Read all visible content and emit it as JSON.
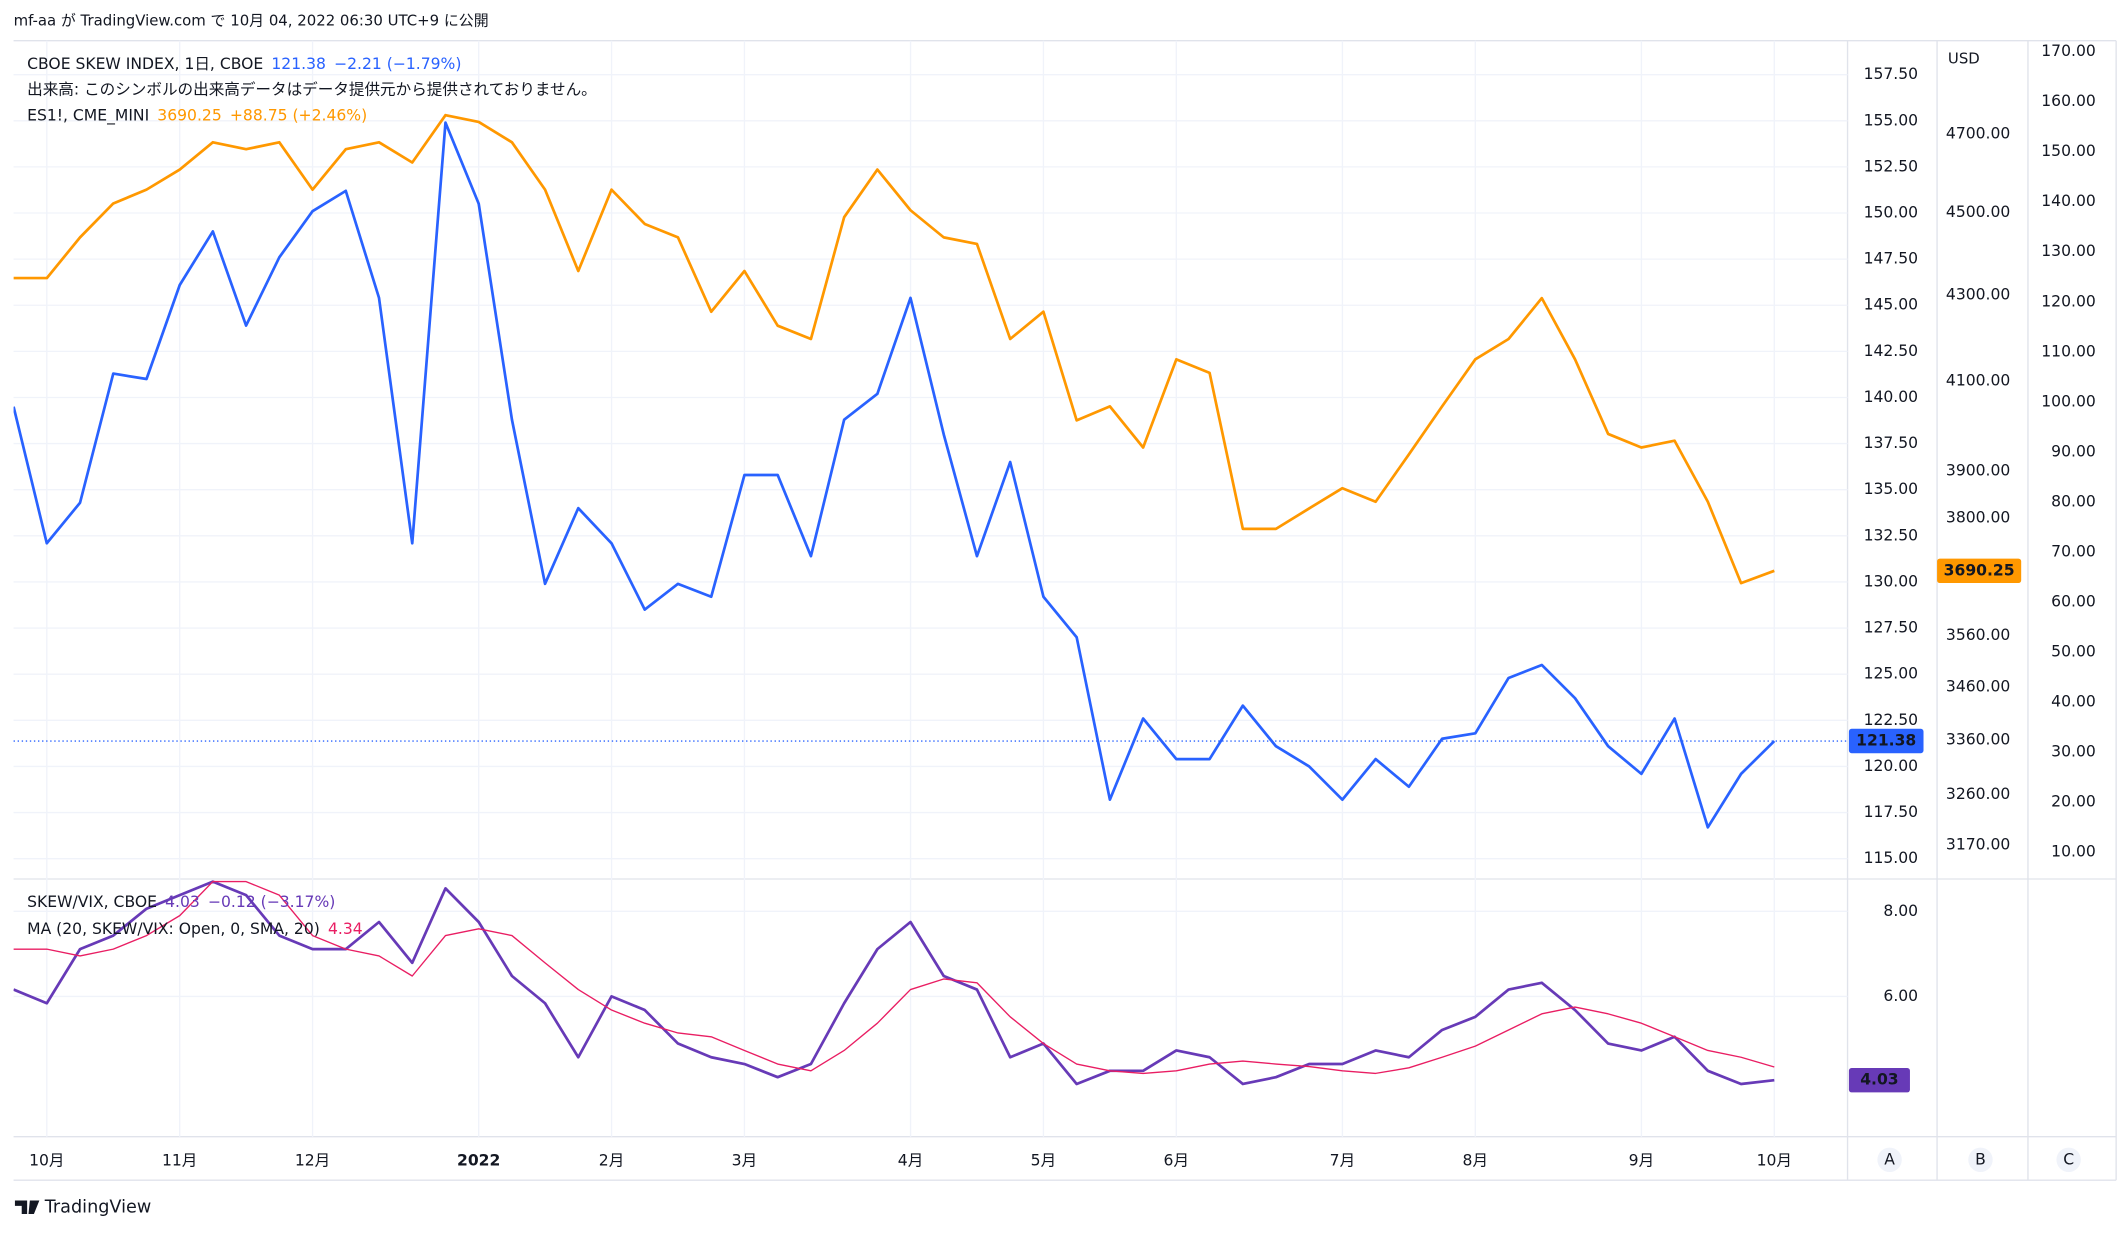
{
  "page": {
    "published": "mf-aa が TradingView.com で 10月 04, 2022 06:30 UTC+9 に公開",
    "brand": "TradingView",
    "scale_buttons": [
      "A",
      "B",
      "C"
    ]
  },
  "chart_data": [
    {
      "type": "line",
      "categories": [
        null,
        "10月",
        null,
        null,
        null,
        "11月",
        null,
        null,
        null,
        "12月",
        null,
        null,
        null,
        null,
        "2022",
        null,
        null,
        null,
        "2月",
        null,
        null,
        null,
        "3月",
        null,
        null,
        null,
        null,
        "4月",
        null,
        null,
        null,
        "5月",
        null,
        null,
        null,
        "6月",
        null,
        null,
        null,
        null,
        "7月",
        null,
        null,
        null,
        "8月",
        null,
        null,
        null,
        null,
        "9月",
        null,
        null,
        null,
        "10月"
      ],
      "note": "出来高: このシンボルの出来高データはデータ提供元から提供されておりません。",
      "series": [
        {
          "name": "CBOE SKEW INDEX, 1日, CBOE",
          "color": "#2962ff",
          "axis": "y",
          "change": "−2.21 (−1.79%)",
          "values": [
            139.5,
            132.1,
            134.3,
            141.3,
            141.0,
            146.1,
            149.0,
            143.9,
            147.6,
            150.1,
            151.2,
            145.4,
            132.1,
            154.9,
            150.5,
            138.8,
            129.9,
            134.0,
            132.1,
            128.5,
            129.9,
            129.2,
            135.8,
            135.8,
            131.4,
            138.8,
            140.2,
            145.4,
            138.0,
            131.4,
            136.5,
            129.2,
            127.0,
            118.2,
            122.6,
            120.4,
            120.4,
            123.3,
            121.1,
            120.0,
            118.2,
            120.4,
            118.9,
            121.5,
            121.8,
            124.8,
            125.5,
            123.7,
            121.1,
            119.6,
            122.6,
            116.7,
            119.6,
            121.38
          ]
        },
        {
          "name": "ES1!, CME_MINI",
          "color": "#ff9800",
          "axis": "y2",
          "change": "+88.75 (+2.46%)",
          "values": [
            4340,
            4340,
            4439,
            4523,
            4558,
            4609,
            4679,
            4661,
            4679,
            4558,
            4661,
            4679,
            4627,
            4750,
            4732,
            4679,
            4558,
            4357,
            4558,
            4472,
            4439,
            4260,
            4357,
            4227,
            4196,
            4489,
            4609,
            4506,
            4439,
            4423,
            4196,
            4260,
            4011,
            4042,
            3951,
            4149,
            4118,
            3777,
            3777,
            3820,
            3863,
            3834,
            3936,
            4042,
            4149,
            4196,
            4292,
            4149,
            3981,
            3951,
            3966,
            3834,
            3665,
            3690.25
          ]
        }
      ],
      "ylim": [
        113.9,
        159.34
      ],
      "yticks": [
        {
          "value": 115,
          "label": "115.00"
        },
        {
          "value": 117.5,
          "label": "117.50"
        },
        {
          "value": 120,
          "label": "120.00"
        },
        {
          "value": 122.5,
          "label": "122.50"
        },
        {
          "value": 125,
          "label": "125.00"
        },
        {
          "value": 127.5,
          "label": "127.50"
        },
        {
          "value": 130,
          "label": "130.00"
        },
        {
          "value": 132.5,
          "label": "132.50"
        },
        {
          "value": 135,
          "label": "135.00"
        },
        {
          "value": 137.5,
          "label": "137.50"
        },
        {
          "value": 140,
          "label": "140.00"
        },
        {
          "value": 142.5,
          "label": "142.50"
        },
        {
          "value": 145,
          "label": "145.00"
        },
        {
          "value": 147.5,
          "label": "147.50"
        },
        {
          "value": 150,
          "label": "150.00"
        },
        {
          "value": 152.5,
          "label": "152.50"
        },
        {
          "value": 155,
          "label": "155.00"
        },
        {
          "value": 157.5,
          "label": "157.50"
        }
      ],
      "y2_unit": "USD",
      "y2_log": true,
      "y2lim": [
        3111,
        4950
      ],
      "y2ticks": [
        {
          "value": 3170,
          "label": "3170.00"
        },
        {
          "value": 3260,
          "label": "3260.00"
        },
        {
          "value": 3360,
          "label": "3360.00"
        },
        {
          "value": 3460,
          "label": "3460.00"
        },
        {
          "value": 3560,
          "label": "3560.00"
        },
        {
          "value": 3800,
          "label": "3800.00"
        },
        {
          "value": 3900,
          "label": "3900.00"
        },
        {
          "value": 4100,
          "label": "4100.00"
        },
        {
          "value": 4300,
          "label": "4300.00"
        },
        {
          "value": 4500,
          "label": "4500.00"
        },
        {
          "value": 4700,
          "label": "4700.00"
        }
      ],
      "y3lim": [
        4.58,
        172.2
      ],
      "y3ticks": [
        {
          "value": 10,
          "label": "10.00"
        },
        {
          "value": 20,
          "label": "20.00"
        },
        {
          "value": 30,
          "label": "30.00"
        },
        {
          "value": 40,
          "label": "40.00"
        },
        {
          "value": 50,
          "label": "50.00"
        },
        {
          "value": 60,
          "label": "60.00"
        },
        {
          "value": 70,
          "label": "70.00"
        },
        {
          "value": 80,
          "label": "80.00"
        },
        {
          "value": 90,
          "label": "90.00"
        },
        {
          "value": 100,
          "label": "100.00"
        },
        {
          "value": 110,
          "label": "110.00"
        },
        {
          "value": 120,
          "label": "120.00"
        },
        {
          "value": 130,
          "label": "130.00"
        },
        {
          "value": 140,
          "label": "140.00"
        },
        {
          "value": 150,
          "label": "150.00"
        },
        {
          "value": 160,
          "label": "160.00"
        },
        {
          "value": 170,
          "label": "170.00"
        }
      ],
      "grid": true
    },
    {
      "type": "line",
      "series": [
        {
          "name": "SKEW/VIX, CBOE",
          "color": "#673ab7",
          "change": "−0.12 (−3.17%)",
          "values": [
            6.16,
            5.84,
            7.11,
            7.43,
            8.06,
            8.38,
            8.7,
            8.38,
            7.43,
            7.11,
            7.11,
            7.75,
            6.79,
            8.54,
            7.75,
            6.48,
            5.84,
            4.57,
            6.0,
            5.68,
            4.89,
            4.57,
            4.41,
            4.1,
            4.41,
            5.84,
            7.11,
            7.75,
            6.48,
            6.16,
            4.57,
            4.89,
            3.94,
            4.25,
            4.25,
            4.73,
            4.57,
            3.94,
            4.1,
            4.41,
            4.41,
            4.73,
            4.57,
            5.21,
            5.52,
            6.16,
            6.32,
            5.68,
            4.89,
            4.73,
            5.05,
            4.25,
            3.94,
            4.03
          ]
        },
        {
          "name": "MA (20, SKEW/VIX: Open, 0, SMA, 20)",
          "color": "#e91e63",
          "values": [
            7.11,
            7.11,
            6.95,
            7.11,
            7.43,
            7.9,
            8.7,
            8.7,
            8.38,
            7.43,
            7.11,
            6.95,
            6.48,
            7.43,
            7.59,
            7.43,
            6.79,
            6.16,
            5.68,
            5.37,
            5.14,
            5.05,
            4.73,
            4.41,
            4.25,
            4.73,
            5.37,
            6.16,
            6.41,
            6.32,
            5.52,
            4.89,
            4.41,
            4.25,
            4.19,
            4.25,
            4.41,
            4.48,
            4.41,
            4.35,
            4.25,
            4.19,
            4.32,
            4.57,
            4.83,
            5.21,
            5.59,
            5.75,
            5.59,
            5.37,
            5.05,
            4.73,
            4.57,
            4.34
          ]
        }
      ],
      "ylim": [
        2.7,
        8.76
      ],
      "yticks": [
        {
          "value": 6,
          "label": "6.00"
        },
        {
          "value": 8,
          "label": "8.00"
        }
      ],
      "grid": true
    }
  ]
}
